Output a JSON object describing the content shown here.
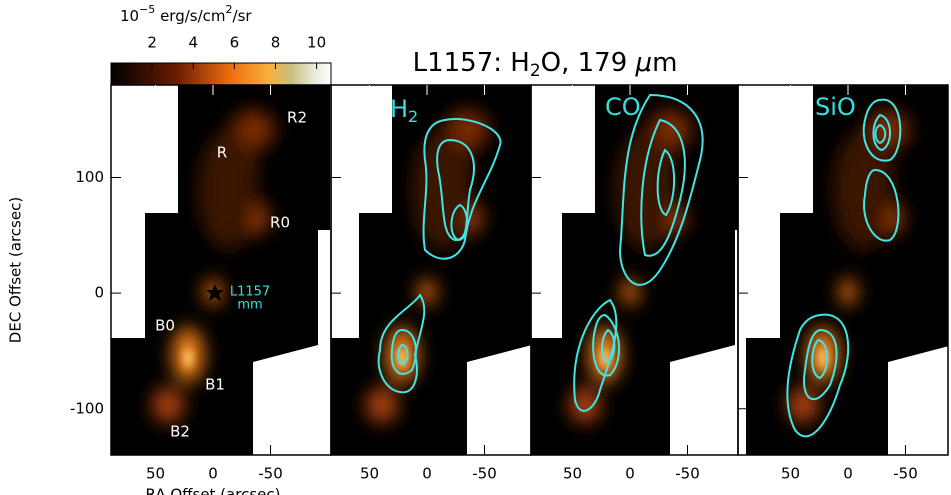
{
  "title_parts": [
    "L1157: H",
    "2",
    "O, 179 ",
    "μ",
    "m"
  ],
  "colorbar": {
    "label_parts": [
      "10",
      "−5",
      " erg/s/cm",
      "2",
      "/sr"
    ],
    "clim": [
      0,
      10.7
    ],
    "ticks": [
      2,
      4,
      6,
      8,
      10
    ]
  },
  "axes": {
    "xlim": [
      90,
      -90
    ],
    "ylim": [
      -140,
      180
    ],
    "xticks": [
      50,
      0,
      -50
    ],
    "yticks": [
      100,
      0,
      -100
    ],
    "xlabel": "RA Offset (arcsec)",
    "ylabel": "DEC Offset (arcsec)"
  },
  "panels": [
    {
      "label": null
    },
    {
      "label_parts": [
        "H",
        "2"
      ]
    },
    {
      "label": "CO"
    },
    {
      "label": "SiO"
    }
  ],
  "annotations": [
    "R2",
    "R",
    "R0",
    "B0",
    "B1",
    "B2",
    "L1157",
    "mm"
  ]
}
